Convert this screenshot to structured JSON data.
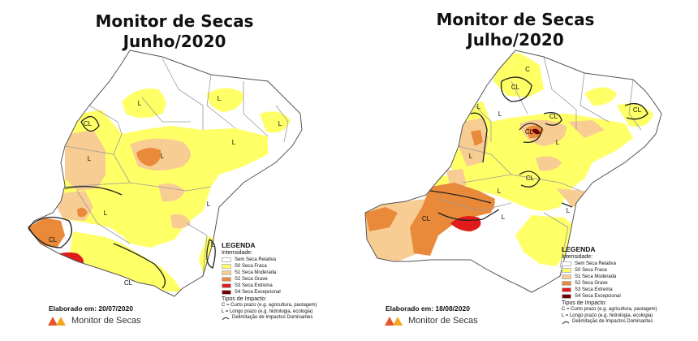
{
  "left": {
    "title_line1": "Monitor de Secas",
    "title_line2": "Junho/2020",
    "elaborado": "Elaborado em: 20/07/2020",
    "legend": {
      "title": "LEGENDA",
      "subtitle": "Intensidade:",
      "items": [
        {
          "label": "Sem Seca Relativa",
          "color": "#ffffff"
        },
        {
          "label": "S0 Seca Fraca",
          "color": "#ffff66"
        },
        {
          "label": "S1 Seca Moderada",
          "color": "#f8cd94"
        },
        {
          "label": "S2 Seca Grave",
          "color": "#e9893a"
        },
        {
          "label": "S3 Seca Extrema",
          "color": "#e11b1b"
        },
        {
          "label": "S4 Seca Excepcional",
          "color": "#730000"
        }
      ],
      "impact_title": "Tipos de Impacto:",
      "impact_c": "C = Curto prazo (e.g. agricultura, pastagem)",
      "impact_l": "L = Longo prazo (e.g. hidrologia, ecologia)",
      "impact_line": "Delimitação de Impactos Dominantes"
    },
    "map_labels": [
      "L",
      "CL",
      "L",
      "L",
      "L",
      "CL",
      "L",
      "L",
      "CL",
      "L",
      "L",
      "L"
    ]
  },
  "right": {
    "title_line1": "Monitor de Secas",
    "title_line2": "Julho/2020",
    "elaborado": "Elaborado em: 18/08/2020",
    "legend": {
      "title": "LEGENDA",
      "subtitle": "Intensidade:",
      "items": [
        {
          "label": "Sem Seca Relativa",
          "color": "#ffffff"
        },
        {
          "label": "S0 Seca Fraca",
          "color": "#ffff66"
        },
        {
          "label": "S1 Seca Moderada",
          "color": "#f8cd94"
        },
        {
          "label": "S2 Seca Grave",
          "color": "#e9893a"
        },
        {
          "label": "S3 Seca Extrema",
          "color": "#e11b1b"
        },
        {
          "label": "S4 Seca Excepcional",
          "color": "#730000"
        }
      ],
      "impact_title": "Tipos de Impacto:",
      "impact_c": "C = Curto prazo (e.g. agricultura, pastagem)",
      "impact_l": "L = Longo prazo (e.g. hidrologia, ecologia)",
      "impact_line": "Delimitação de Impactos Dominantes"
    },
    "map_labels": [
      "C",
      "CL",
      "CL",
      "CL",
      "L",
      "L",
      "CL",
      "L",
      "CL",
      "L",
      "CL",
      "L",
      "L",
      "L"
    ]
  },
  "logo": {
    "name": "Monitor de Secas",
    "colors": [
      "#e4572e",
      "#f5a623"
    ],
    "icon": "monitor-de-secas-logo-icon"
  }
}
